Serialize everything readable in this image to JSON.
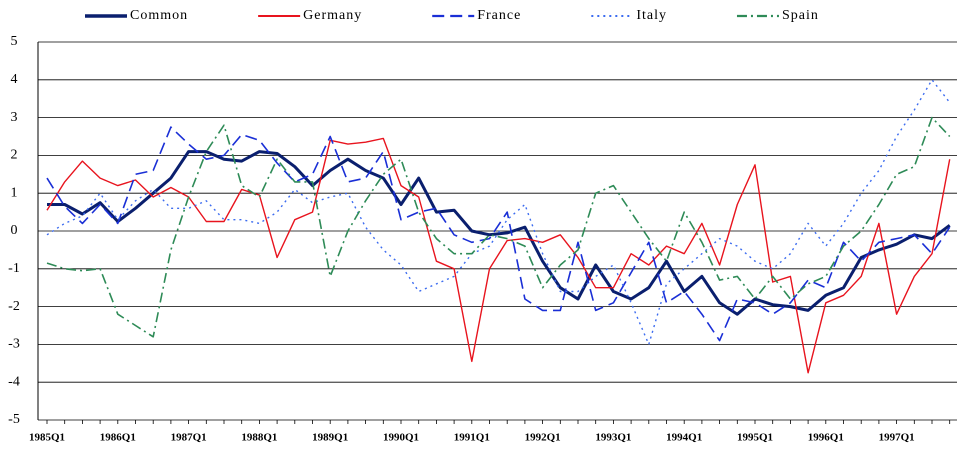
{
  "chart_data": {
    "type": "line",
    "categories": [
      "1985Q1",
      null,
      null,
      null,
      "1986Q1",
      null,
      null,
      null,
      "1987Q1",
      null,
      null,
      null,
      "1988Q1",
      null,
      null,
      null,
      "1989Q1",
      null,
      null,
      null,
      "1990Q1",
      null,
      null,
      null,
      "1991Q1",
      null,
      null,
      null,
      "1992Q1",
      null,
      null,
      null,
      "1993Q1",
      null,
      null,
      null,
      "1994Q1",
      null,
      null,
      null,
      "1995Q1",
      null,
      null,
      null,
      "1996Q1",
      null,
      null,
      null,
      "1997Q1",
      null,
      null,
      null
    ],
    "series": [
      {
        "name": "Common",
        "color": "#0a1f6e",
        "width": 3,
        "dash": "none",
        "values": [
          0.7,
          0.7,
          0.45,
          0.75,
          0.25,
          0.6,
          1.0,
          1.4,
          2.1,
          2.1,
          1.9,
          1.85,
          2.1,
          2.05,
          1.7,
          1.2,
          1.6,
          1.9,
          1.6,
          1.4,
          0.7,
          1.4,
          0.5,
          0.55,
          0.0,
          -0.1,
          -0.05,
          0.1,
          -0.8,
          -1.5,
          -1.8,
          -0.9,
          -1.6,
          -1.8,
          -1.5,
          -0.8,
          -1.6,
          -1.2,
          -1.9,
          -2.2,
          -1.8,
          -1.95,
          -2.0,
          -2.1,
          -1.7,
          -1.5,
          -0.7,
          -0.5,
          -0.35,
          -0.1,
          -0.2,
          0.15
        ]
      },
      {
        "name": "Germany",
        "color": "#e8141e",
        "width": 1.4,
        "dash": "none",
        "values": [
          0.55,
          1.3,
          1.85,
          1.4,
          1.2,
          1.35,
          0.9,
          1.15,
          0.9,
          0.25,
          0.25,
          1.1,
          0.95,
          -0.7,
          0.3,
          0.5,
          2.4,
          2.3,
          2.35,
          2.45,
          1.2,
          0.9,
          -0.8,
          -1.0,
          -3.45,
          -1.0,
          -0.25,
          -0.2,
          -0.3,
          -0.1,
          -0.7,
          -1.5,
          -1.5,
          -0.6,
          -0.9,
          -0.4,
          -0.6,
          0.2,
          -0.9,
          0.7,
          1.75,
          -1.35,
          -1.2,
          -3.75,
          -1.9,
          -1.7,
          -1.2,
          0.2,
          -2.2,
          -1.2,
          -0.6,
          1.9
        ]
      },
      {
        "name": "France",
        "color": "#1a2fd6",
        "width": 1.6,
        "dash": "12,6",
        "values": [
          1.4,
          0.65,
          0.2,
          0.7,
          0.2,
          1.5,
          1.6,
          2.75,
          2.3,
          1.9,
          2.0,
          2.55,
          2.4,
          1.8,
          1.3,
          1.5,
          2.5,
          1.3,
          1.4,
          2.1,
          0.3,
          0.5,
          0.6,
          -0.1,
          -0.3,
          -0.2,
          0.5,
          -1.8,
          -2.1,
          -2.1,
          -0.3,
          -2.1,
          -1.9,
          -1.1,
          -0.3,
          -1.9,
          -1.6,
          -2.2,
          -2.9,
          -1.8,
          -1.9,
          -2.2,
          -1.9,
          -1.3,
          -1.5,
          -0.3,
          -0.8,
          -0.3,
          -0.2,
          -0.1,
          -0.6,
          0.1
        ]
      },
      {
        "name": "Italy",
        "color": "#3c6cf0",
        "width": 1.4,
        "dash": "2,4",
        "values": [
          -0.1,
          0.2,
          0.4,
          1.0,
          0.3,
          0.8,
          1.1,
          0.6,
          0.6,
          0.8,
          0.3,
          0.3,
          0.2,
          0.5,
          1.1,
          0.75,
          0.9,
          1.0,
          0.1,
          -0.5,
          -0.9,
          -1.6,
          -1.4,
          -1.2,
          -0.6,
          -0.4,
          0.3,
          0.7,
          -0.6,
          -1.6,
          -1.6,
          -1.2,
          -0.9,
          -1.9,
          -3.0,
          -1.4,
          -1.0,
          -0.6,
          -0.2,
          -0.4,
          -0.8,
          -1.0,
          -0.6,
          0.2,
          -0.4,
          0.2,
          1.0,
          1.6,
          2.5,
          3.2,
          4.0,
          3.4
        ]
      },
      {
        "name": "Spain",
        "color": "#2e8b57",
        "width": 1.6,
        "dash": "10,4,2,4",
        "values": [
          -0.85,
          -1.0,
          -1.05,
          -1.0,
          -2.2,
          -2.5,
          -2.8,
          -0.5,
          0.9,
          2.1,
          2.8,
          1.2,
          0.9,
          1.9,
          1.3,
          1.3,
          -1.2,
          0.0,
          0.8,
          1.5,
          1.9,
          0.5,
          -0.2,
          -0.6,
          -0.6,
          -0.1,
          -0.2,
          -0.4,
          -1.5,
          -0.9,
          -0.5,
          1.0,
          1.2,
          0.5,
          -0.2,
          -0.8,
          0.5,
          -0.3,
          -1.3,
          -1.2,
          -1.8,
          -1.2,
          -1.8,
          -1.4,
          -1.2,
          -0.4,
          0.0,
          0.7,
          1.5,
          1.7,
          3.0,
          2.5
        ]
      }
    ],
    "ylim": [
      -5,
      5
    ],
    "yticks": [
      -5,
      -4,
      -3,
      -2,
      -1,
      0,
      1,
      2,
      3,
      4,
      5
    ],
    "grid": true,
    "legend": "top"
  }
}
